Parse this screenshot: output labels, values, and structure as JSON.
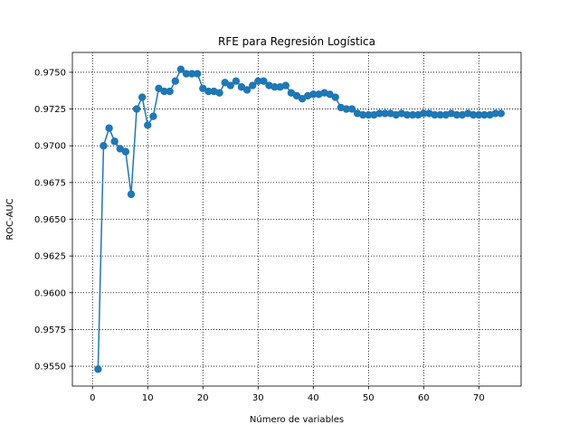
{
  "chart_data": {
    "type": "line",
    "title": "RFE para Regresión Logística",
    "xlabel": "Número de variables",
    "ylabel": "ROC-AUC",
    "xlim": [
      -3.65,
      77.65
    ],
    "ylim": [
      0.95365,
      0.97635
    ],
    "xticks": [
      0,
      10,
      20,
      30,
      40,
      50,
      60,
      70
    ],
    "xtick_labels": [
      "0",
      "10",
      "20",
      "30",
      "40",
      "50",
      "60",
      "70"
    ],
    "yticks": [
      0.955,
      0.9575,
      0.96,
      0.9625,
      0.965,
      0.9675,
      0.97,
      0.9725,
      0.975
    ],
    "ytick_labels": [
      "0.9550",
      "0.9575",
      "0.9600",
      "0.9625",
      "0.9650",
      "0.9675",
      "0.9700",
      "0.9725",
      "0.9750"
    ],
    "grid": true,
    "grid_style": "dotted",
    "marker": "circle",
    "color": "#1f77b4",
    "series": [
      {
        "x": [
          1,
          2,
          3,
          4,
          5,
          6,
          7,
          8,
          9,
          10,
          11,
          12,
          13,
          14,
          15,
          16,
          17,
          18,
          19,
          20,
          21,
          22,
          23,
          24,
          25,
          26,
          27,
          28,
          29,
          30,
          31,
          32,
          33,
          34,
          35,
          36,
          37,
          38,
          39,
          40,
          41,
          42,
          43,
          44,
          45,
          46,
          47,
          48,
          49,
          50,
          51,
          52,
          53,
          54,
          55,
          56,
          57,
          58,
          59,
          60,
          61,
          62,
          63,
          64,
          65,
          66,
          67,
          68,
          69,
          70,
          71,
          72,
          73,
          74
        ],
        "values": [
          0.9548,
          0.97,
          0.9712,
          0.9703,
          0.9698,
          0.9696,
          0.9667,
          0.9725,
          0.9733,
          0.9714,
          0.972,
          0.9739,
          0.9737,
          0.9737,
          0.9744,
          0.9752,
          0.9749,
          0.9749,
          0.9749,
          0.9739,
          0.9737,
          0.9737,
          0.9736,
          0.9743,
          0.9741,
          0.9744,
          0.974,
          0.9738,
          0.9741,
          0.9744,
          0.9744,
          0.9741,
          0.974,
          0.974,
          0.9741,
          0.9736,
          0.9734,
          0.9732,
          0.9734,
          0.9735,
          0.9735,
          0.9736,
          0.9735,
          0.9733,
          0.9726,
          0.9725,
          0.9725,
          0.9722,
          0.9721,
          0.9721,
          0.9721,
          0.9722,
          0.9722,
          0.9722,
          0.9721,
          0.9722,
          0.9721,
          0.9721,
          0.9721,
          0.9722,
          0.9722,
          0.9721,
          0.9721,
          0.9721,
          0.9722,
          0.9721,
          0.9721,
          0.9722,
          0.9721,
          0.9721,
          0.9721,
          0.9721,
          0.9722,
          0.9722
        ]
      }
    ]
  }
}
